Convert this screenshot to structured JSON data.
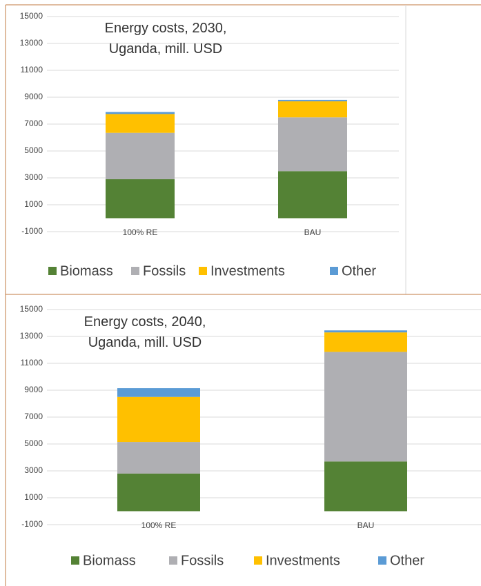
{
  "chart_data": [
    {
      "type": "stacked_bar",
      "title": "Energy costs, 2030, Uganda, mill. USD",
      "categories": [
        "100% RE",
        "BAU"
      ],
      "series": [
        {
          "name": "Biomass",
          "color": "#548235",
          "values": [
            2900,
            3500
          ]
        },
        {
          "name": "Fossils",
          "color": "#afafb3",
          "values": [
            3450,
            4000
          ]
        },
        {
          "name": "Investments",
          "color": "#ffc000",
          "values": [
            1400,
            1200
          ]
        },
        {
          "name": "Other",
          "color": "#5b9bd5",
          "values": [
            150,
            100
          ]
        }
      ],
      "ylim": [
        -1000,
        15000
      ],
      "yticks": [
        -1000,
        1000,
        3000,
        5000,
        7000,
        9000,
        11000,
        13000,
        15000
      ],
      "grid": true,
      "legend": "bottom"
    },
    {
      "type": "stacked_bar",
      "title": "Energy costs, 2040, Uganda, mill. USD",
      "categories": [
        "100% RE",
        "BAU"
      ],
      "series": [
        {
          "name": "Biomass",
          "color": "#548235",
          "values": [
            2800,
            3700
          ]
        },
        {
          "name": "Fossils",
          "color": "#afafb3",
          "values": [
            2350,
            8150
          ]
        },
        {
          "name": "Investments",
          "color": "#ffc000",
          "values": [
            3350,
            1450
          ]
        },
        {
          "name": "Other",
          "color": "#5b9bd5",
          "values": [
            650,
            150
          ]
        }
      ],
      "ylim": [
        -1000,
        15000
      ],
      "yticks": [
        -1000,
        1000,
        3000,
        5000,
        7000,
        9000,
        11000,
        13000,
        15000
      ],
      "grid": true,
      "legend": "bottom"
    }
  ]
}
